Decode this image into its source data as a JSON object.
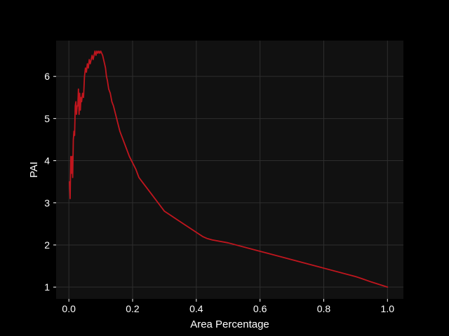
{
  "chart_data": {
    "type": "line",
    "title": "",
    "xlabel": "Area Percentage",
    "ylabel": "PAI",
    "xlim": [
      -0.04,
      1.05
    ],
    "ylim": [
      0.72,
      6.85
    ],
    "grid": true,
    "legend": "none",
    "x_ticks": [
      0.0,
      0.2,
      0.4,
      0.6,
      0.8,
      1.0
    ],
    "x_tick_labels": [
      "0.0",
      "0.2",
      "0.4",
      "0.6",
      "0.8",
      "1.0"
    ],
    "y_ticks": [
      1,
      2,
      3,
      4,
      5,
      6
    ],
    "y_tick_labels": [
      "1",
      "2",
      "3",
      "4",
      "5",
      "6"
    ],
    "colors": {
      "background": "#000000",
      "plot_background": "#111111",
      "grid": "#2e2e2e",
      "line": "#c0161e",
      "text": "#ffffff"
    },
    "series": [
      {
        "x": [
          0.002,
          0.004,
          0.006,
          0.008,
          0.01,
          0.012,
          0.014,
          0.016,
          0.018,
          0.02,
          0.022,
          0.024,
          0.026,
          0.028,
          0.03,
          0.032,
          0.034,
          0.036,
          0.038,
          0.04,
          0.043,
          0.046,
          0.049,
          0.052,
          0.055,
          0.058,
          0.061,
          0.064,
          0.067,
          0.07,
          0.073,
          0.076,
          0.079,
          0.082,
          0.085,
          0.088,
          0.091,
          0.094,
          0.097,
          0.1,
          0.103,
          0.106,
          0.109,
          0.112,
          0.115,
          0.118,
          0.121,
          0.125,
          0.13,
          0.135,
          0.14,
          0.15,
          0.16,
          0.17,
          0.18,
          0.19,
          0.2,
          0.21,
          0.22,
          0.23,
          0.24,
          0.25,
          0.26,
          0.28,
          0.3,
          0.32,
          0.34,
          0.36,
          0.38,
          0.4,
          0.42,
          0.435,
          0.45,
          0.5,
          0.6,
          0.7,
          0.8,
          0.9,
          0.92,
          0.95,
          1.0
        ],
        "values": [
          3.5,
          3.1,
          4.1,
          3.7,
          4.1,
          3.6,
          4.5,
          4.7,
          4.6,
          5.3,
          5.4,
          5.1,
          5.3,
          5.3,
          5.7,
          5.1,
          5.6,
          5.2,
          5.5,
          5.4,
          5.6,
          5.5,
          6.0,
          6.2,
          6.1,
          6.3,
          6.2,
          6.4,
          6.3,
          6.4,
          6.5,
          6.4,
          6.5,
          6.6,
          6.5,
          6.6,
          6.55,
          6.6,
          6.55,
          6.6,
          6.55,
          6.5,
          6.4,
          6.3,
          6.2,
          6.0,
          5.9,
          5.7,
          5.6,
          5.4,
          5.3,
          5.0,
          4.7,
          4.5,
          4.3,
          4.1,
          3.95,
          3.8,
          3.6,
          3.5,
          3.4,
          3.3,
          3.2,
          3.0,
          2.8,
          2.7,
          2.6,
          2.5,
          2.4,
          2.3,
          2.2,
          2.15,
          2.12,
          2.05,
          1.85,
          1.65,
          1.45,
          1.25,
          1.2,
          1.12,
          1.0
        ]
      }
    ]
  }
}
